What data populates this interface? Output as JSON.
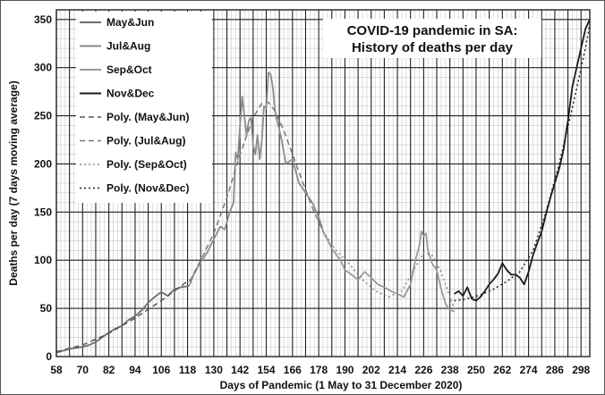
{
  "chart_data": {
    "type": "line",
    "title": [
      "COVID-19 pandemic in SA:",
      "History of deaths per day"
    ],
    "xlabel": "Days of Pandemic (1 May to 31 December 2020)",
    "ylabel": "Deaths per day (7 days moving average)",
    "xlim": [
      58,
      302
    ],
    "ylim": [
      0,
      360
    ],
    "xticks": [
      58,
      70,
      82,
      94,
      106,
      118,
      130,
      142,
      154,
      166,
      178,
      190,
      202,
      214,
      226,
      238,
      250,
      262,
      274,
      286,
      298
    ],
    "yticks": [
      0,
      50,
      100,
      150,
      200,
      250,
      300,
      350
    ],
    "grid": true,
    "legend_position": "upper-left",
    "series": [
      {
        "name": "May&Jun",
        "style": "solid",
        "color": "#6e6e6e",
        "x": [
          58,
          61,
          64,
          67,
          70,
          73,
          76,
          79,
          82,
          85,
          88,
          91,
          94,
          97,
          100,
          103,
          106,
          109,
          112,
          115,
          118,
          119
        ],
        "y": [
          4,
          6,
          8,
          9,
          10,
          12,
          15,
          20,
          25,
          29,
          32,
          38,
          42,
          48,
          56,
          62,
          67,
          63,
          70,
          72,
          73,
          74
        ]
      },
      {
        "name": "Jul&Aug",
        "style": "solid",
        "color": "#8c8c8c",
        "x": [
          119,
          121,
          124,
          127,
          130,
          133,
          135,
          137,
          139,
          140,
          141,
          142,
          143,
          144,
          145,
          146,
          147,
          148,
          149,
          150,
          151,
          152,
          153,
          154,
          155,
          156,
          157,
          158,
          159,
          161,
          163,
          166,
          169,
          172,
          175,
          178,
          180
        ],
        "y": [
          75,
          86,
          98,
          108,
          122,
          135,
          132,
          148,
          160,
          212,
          205,
          240,
          270,
          250,
          230,
          245,
          248,
          220,
          210,
          230,
          205,
          225,
          260,
          258,
          295,
          293,
          280,
          255,
          245,
          225,
          200,
          205,
          180,
          170,
          160,
          145,
          130
        ]
      },
      {
        "name": "Sep&Oct",
        "style": "solid",
        "color": "#9a9a9a",
        "x": [
          180,
          184,
          188,
          190,
          193,
          196,
          199,
          202,
          205,
          208,
          211,
          214,
          217,
          220,
          222,
          224,
          225,
          226,
          227,
          228,
          230,
          232,
          234,
          236,
          238,
          240
        ],
        "y": [
          130,
          112,
          100,
          90,
          85,
          80,
          88,
          82,
          75,
          72,
          68,
          65,
          62,
          75,
          98,
          115,
          130,
          125,
          128,
          110,
          96,
          90,
          70,
          55,
          48,
          47
        ]
      },
      {
        "name": "Nov&Dec",
        "style": "solid",
        "color": "#1a1a1a",
        "x": [
          240,
          242,
          244,
          246,
          248,
          250,
          252,
          254,
          256,
          258,
          260,
          262,
          264,
          266,
          268,
          270,
          272,
          274,
          276,
          278,
          280,
          282,
          284,
          286,
          288,
          290,
          292,
          294,
          296,
          298,
          300,
          302
        ],
        "y": [
          65,
          68,
          63,
          72,
          60,
          58,
          62,
          68,
          75,
          80,
          86,
          97,
          90,
          85,
          85,
          82,
          75,
          88,
          105,
          118,
          130,
          148,
          165,
          180,
          195,
          215,
          245,
          280,
          300,
          320,
          340,
          350
        ]
      },
      {
        "name": "Poly. (May&Jun)",
        "style": "dashed",
        "color": "#555555",
        "x": [
          58,
          70,
          82,
          94,
          106,
          119
        ],
        "y": [
          5,
          12,
          24,
          40,
          58,
          80
        ]
      },
      {
        "name": "Poly. (Jul&Aug)",
        "style": "dashed",
        "color": "#777777",
        "x": [
          119,
          124,
          130,
          136,
          142,
          148,
          152,
          155,
          158,
          162,
          166,
          170,
          175,
          180
        ],
        "y": [
          78,
          100,
          128,
          165,
          210,
          248,
          263,
          264,
          255,
          235,
          210,
          185,
          155,
          130
        ]
      },
      {
        "name": "Poly. (Sep&Oct)",
        "style": "dotted",
        "color": "#888888",
        "x": [
          180,
          186,
          192,
          198,
          204,
          210,
          216,
          222,
          226,
          230,
          234,
          238,
          240
        ],
        "y": [
          130,
          110,
          96,
          80,
          68,
          62,
          68,
          92,
          108,
          105,
          88,
          62,
          50
        ]
      },
      {
        "name": "Poly. (Nov&Dec)",
        "style": "dotted",
        "color": "#222222",
        "x": [
          240,
          246,
          252,
          258,
          264,
          270,
          276,
          282,
          288,
          294,
          300,
          302
        ],
        "y": [
          58,
          60,
          64,
          70,
          78,
          88,
          110,
          150,
          200,
          258,
          320,
          345
        ]
      }
    ]
  }
}
